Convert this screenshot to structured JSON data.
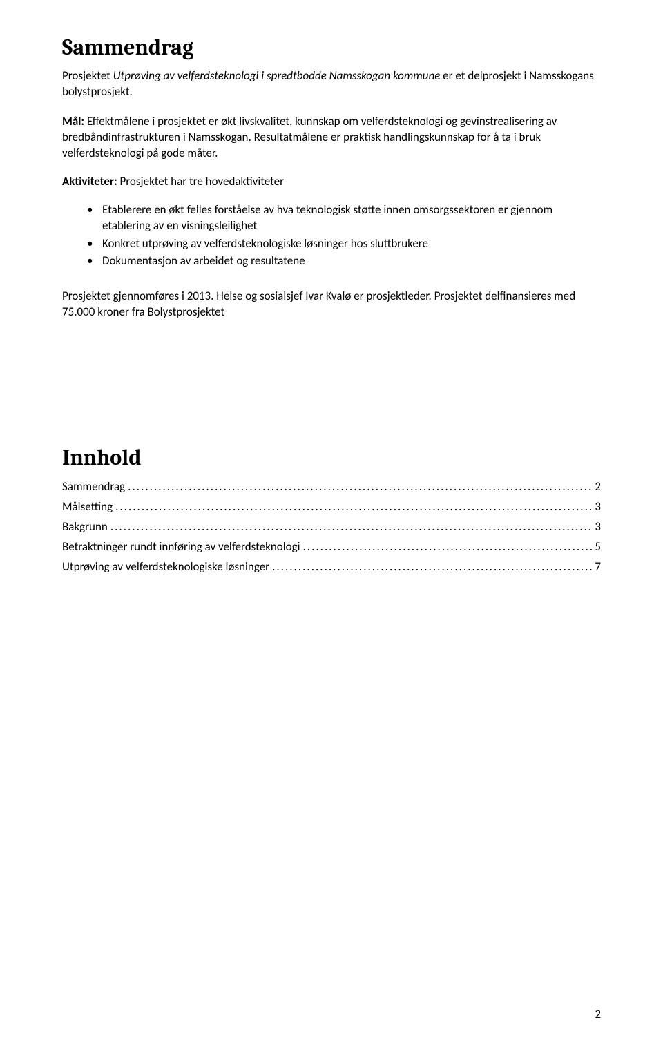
{
  "title": "Sammendrag",
  "intro_prefix": "Prosjektet ",
  "intro_italic": "Utprøving av velferdsteknologi i spredtbodde Namsskogan kommune",
  "intro_suffix": " er et delprosjekt i Namsskogans bolystprosjekt.",
  "mal_label": "Mål:",
  "mal_text": " Effektmålene i prosjektet er økt livskvalitet, kunnskap om velferdsteknologi og gevinstrealisering av bredbåndinfrastrukturen i Namsskogan. Resultatmålene er praktisk handlingskunnskap for å ta i bruk velferdsteknologi på gode måter.",
  "akt_label": "Aktiviteter:",
  "akt_text": " Prosjektet har tre hovedaktiviteter",
  "bullets": [
    "Etablerere en økt felles forståelse av hva teknologisk støtte innen omsorgssektoren er gjennom etablering av en visningsleilighet",
    "Konkret utprøving av velferdsteknologiske løsninger hos sluttbrukere",
    "Dokumentasjon av arbeidet og resultatene"
  ],
  "closing": "Prosjektet gjennomføres i 2013. Helse og sosialsjef Ivar Kvalø er prosjektleder. Prosjektet delfinansieres med 75.000 kroner fra Bolystprosjektet",
  "innhold_title": "Innhold",
  "toc": [
    {
      "label": "Sammendrag",
      "page": "2"
    },
    {
      "label": "Målsetting",
      "page": "3"
    },
    {
      "label": "Bakgrunn",
      "page": "3"
    },
    {
      "label": "Betraktninger rundt innføring av velferdsteknologi",
      "page": "5"
    },
    {
      "label": "Utprøving av velferdsteknologiske løsninger",
      "page": "7"
    }
  ],
  "page_number": "2"
}
